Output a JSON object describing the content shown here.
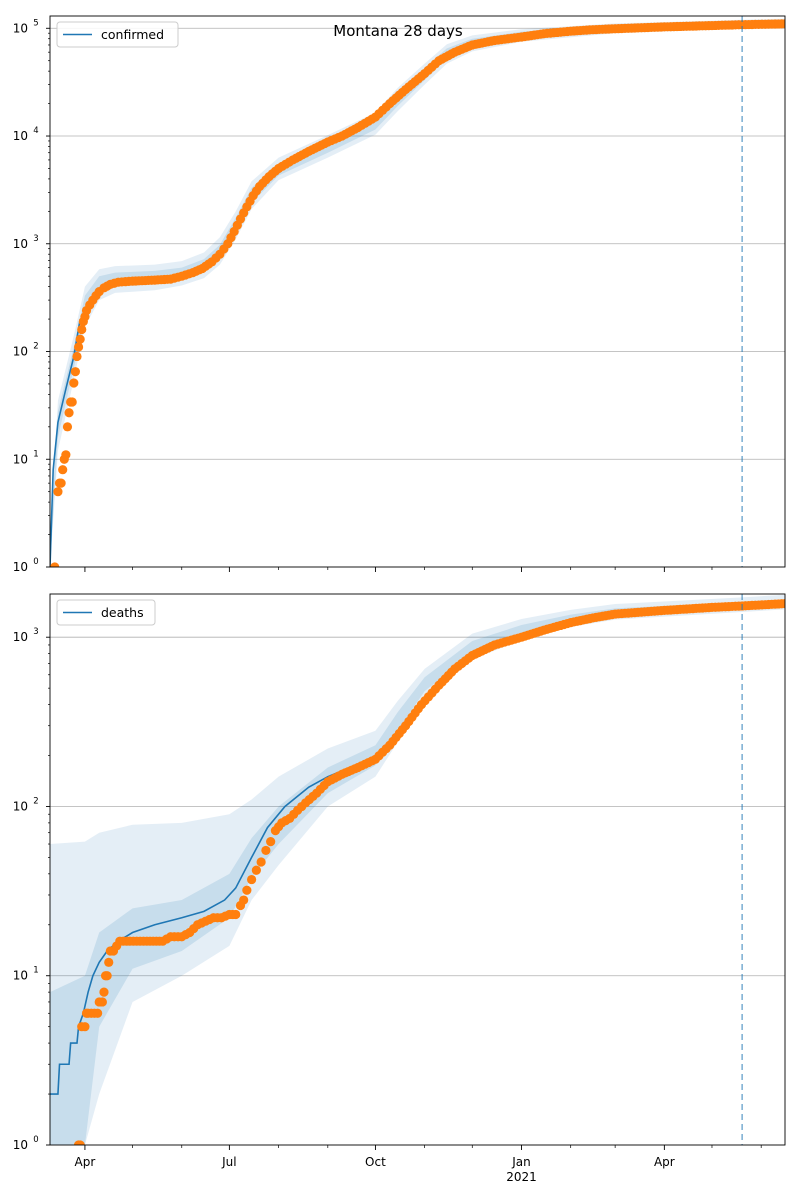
{
  "figure": {
    "title": "Montana 28 days"
  },
  "colors": {
    "model": "#1f77b4",
    "observed": "#ff7f0e",
    "band": "#1f77b4",
    "grid": "#b0b0b0"
  },
  "chart_data": [
    {
      "type": "line",
      "yscale": "log",
      "ylim": [
        1,
        130000
      ],
      "xlim": [
        "2020-03-10",
        "2021-06-16"
      ],
      "grid": "horizontal",
      "legend_placement": "upper-left",
      "series": [
        {
          "name": "confirmed",
          "kind": "model-line"
        }
      ],
      "yticks": [
        {
          "base": "10",
          "exp": "0",
          "value": 1
        },
        {
          "base": "10",
          "exp": "1",
          "value": 10
        },
        {
          "base": "10",
          "exp": "2",
          "value": 100
        },
        {
          "base": "10",
          "exp": "3",
          "value": 1000
        },
        {
          "base": "10",
          "exp": "4",
          "value": 10000
        },
        {
          "base": "10",
          "exp": "5",
          "value": 100000
        }
      ],
      "forecast_start": "2021-05-20",
      "model": [
        [
          "2020-03-10",
          1
        ],
        [
          "2020-03-12",
          8
        ],
        [
          "2020-03-15",
          22
        ],
        [
          "2020-03-20",
          45
        ],
        [
          "2020-03-25",
          90
        ],
        [
          "2020-03-29",
          200
        ]
      ],
      "band": [
        [
          "2020-03-10",
          1,
          1.5,
          1,
          2
        ],
        [
          "2020-03-15",
          16,
          28,
          12,
          35
        ],
        [
          "2020-03-25",
          70,
          110,
          55,
          140
        ],
        [
          "2020-04-01",
          210,
          330,
          170,
          400
        ],
        [
          "2020-04-10",
          350,
          500,
          300,
          580
        ],
        [
          "2020-04-20",
          400,
          540,
          350,
          620
        ],
        [
          "2020-05-15",
          420,
          560,
          370,
          640
        ],
        [
          "2020-06-01",
          460,
          600,
          410,
          690
        ],
        [
          "2020-06-15",
          540,
          720,
          480,
          830
        ],
        [
          "2020-06-25",
          720,
          980,
          640,
          1150
        ],
        [
          "2020-07-05",
          1250,
          1750,
          1100,
          2000
        ],
        [
          "2020-07-15",
          2400,
          3300,
          2100,
          3800
        ],
        [
          "2020-08-01",
          4300,
          5600,
          3900,
          6300
        ],
        [
          "2020-09-01",
          7000,
          9200,
          6300,
          10200
        ],
        [
          "2020-10-01",
          11500,
          15000,
          10300,
          16500
        ],
        [
          "2020-10-15",
          19000,
          25000,
          17000,
          28000
        ],
        [
          "2020-11-01",
          33000,
          43000,
          30000,
          47000
        ],
        [
          "2020-11-15",
          52000,
          65000,
          47000,
          71000
        ],
        [
          "2020-12-01",
          66000,
          80000,
          61000,
          86000
        ],
        [
          "2021-01-01",
          80000,
          93000,
          75000,
          98000
        ],
        [
          "2021-03-01",
          94000,
          106000,
          90000,
          111000
        ],
        [
          "2021-05-20",
          103000,
          115000,
          99000,
          120000
        ],
        [
          "2021-06-16",
          106000,
          118000,
          102000,
          123000
        ]
      ],
      "observed": [
        [
          "2020-03-13",
          1
        ],
        [
          "2020-03-15",
          5
        ],
        [
          "2020-03-16",
          6
        ],
        [
          "2020-03-17",
          6
        ],
        [
          "2020-03-18",
          8
        ],
        [
          "2020-03-19",
          10
        ],
        [
          "2020-03-20",
          11
        ],
        [
          "2020-03-21",
          20
        ],
        [
          "2020-03-22",
          27
        ],
        [
          "2020-03-23",
          34
        ],
        [
          "2020-03-24",
          34
        ],
        [
          "2020-03-25",
          51
        ],
        [
          "2020-03-26",
          65
        ],
        [
          "2020-03-27",
          90
        ],
        [
          "2020-03-28",
          110
        ],
        [
          "2020-03-29",
          130
        ],
        [
          "2020-03-30",
          160
        ],
        [
          "2020-03-31",
          190
        ],
        [
          "2020-04-01",
          210
        ],
        [
          "2020-04-02",
          240
        ],
        [
          "2020-04-04",
          270
        ],
        [
          "2020-04-06",
          300
        ],
        [
          "2020-04-08",
          330
        ],
        [
          "2020-04-10",
          360
        ],
        [
          "2020-04-13",
          390
        ],
        [
          "2020-04-17",
          420
        ],
        [
          "2020-04-22",
          440
        ],
        [
          "2020-05-01",
          450
        ],
        [
          "2020-05-15",
          460
        ],
        [
          "2020-05-25",
          470
        ],
        [
          "2020-06-01",
          500
        ],
        [
          "2020-06-08",
          540
        ],
        [
          "2020-06-14",
          590
        ],
        [
          "2020-06-20",
          680
        ],
        [
          "2020-06-25",
          800
        ],
        [
          "2020-06-30",
          1000
        ],
        [
          "2020-07-04",
          1300
        ],
        [
          "2020-07-08",
          1700
        ],
        [
          "2020-07-12",
          2200
        ],
        [
          "2020-07-16",
          2800
        ],
        [
          "2020-07-20",
          3400
        ],
        [
          "2020-07-26",
          4200
        ],
        [
          "2020-08-01",
          5000
        ],
        [
          "2020-08-10",
          6000
        ],
        [
          "2020-08-20",
          7200
        ],
        [
          "2020-09-01",
          8800
        ],
        [
          "2020-09-10",
          10000
        ],
        [
          "2020-09-20",
          12000
        ],
        [
          "2020-10-01",
          15000
        ],
        [
          "2020-10-10",
          20000
        ],
        [
          "2020-10-20",
          27000
        ],
        [
          "2020-11-01",
          38000
        ],
        [
          "2020-11-10",
          50000
        ],
        [
          "2020-11-20",
          60000
        ],
        [
          "2020-12-01",
          70000
        ],
        [
          "2020-12-15",
          77000
        ],
        [
          "2021-01-01",
          83000
        ],
        [
          "2021-01-15",
          89000
        ],
        [
          "2021-02-01",
          94000
        ],
        [
          "2021-02-15",
          97000
        ],
        [
          "2021-03-01",
          99000
        ],
        [
          "2021-04-01",
          103000
        ],
        [
          "2021-05-01",
          106000
        ],
        [
          "2021-05-20",
          108000
        ],
        [
          "2021-06-16",
          110000
        ]
      ]
    },
    {
      "type": "line",
      "yscale": "log",
      "ylim": [
        1,
        1800
      ],
      "xlim": [
        "2020-03-10",
        "2021-06-16"
      ],
      "grid": "horizontal",
      "legend_placement": "upper-left",
      "series": [
        {
          "name": "deaths",
          "kind": "model-line"
        }
      ],
      "yticks": [
        {
          "base": "10",
          "exp": "0",
          "value": 1
        },
        {
          "base": "10",
          "exp": "1",
          "value": 10
        },
        {
          "base": "10",
          "exp": "2",
          "value": 100
        },
        {
          "base": "10",
          "exp": "3",
          "value": 1000
        }
      ],
      "forecast_start": "2021-05-20",
      "model": [
        [
          "2020-03-10",
          2
        ],
        [
          "2020-03-15",
          2
        ],
        [
          "2020-03-16",
          3
        ],
        [
          "2020-03-22",
          3
        ],
        [
          "2020-03-23",
          4
        ],
        [
          "2020-03-27",
          4
        ],
        [
          "2020-03-28",
          5
        ],
        [
          "2020-03-31",
          6
        ],
        [
          "2020-04-03",
          8
        ],
        [
          "2020-04-06",
          10
        ],
        [
          "2020-04-10",
          12
        ],
        [
          "2020-04-15",
          14
        ],
        [
          "2020-04-22",
          16
        ],
        [
          "2020-05-01",
          18
        ],
        [
          "2020-05-15",
          20
        ],
        [
          "2020-06-01",
          22
        ],
        [
          "2020-06-15",
          24
        ],
        [
          "2020-06-28",
          28
        ],
        [
          "2020-07-05",
          33
        ],
        [
          "2020-07-15",
          50
        ],
        [
          "2020-07-25",
          75
        ],
        [
          "2020-08-05",
          100
        ],
        [
          "2020-08-20",
          130
        ],
        [
          "2020-09-01",
          150
        ],
        [
          "2020-09-15",
          170
        ]
      ],
      "band": [
        [
          "2020-03-10",
          1,
          8,
          1,
          60
        ],
        [
          "2020-04-01",
          1,
          10,
          1,
          62
        ],
        [
          "2020-04-10",
          5,
          18,
          2,
          70
        ],
        [
          "2020-05-01",
          11,
          25,
          7,
          78
        ],
        [
          "2020-06-01",
          14,
          28,
          10,
          80
        ],
        [
          "2020-07-01",
          22,
          40,
          15,
          90
        ],
        [
          "2020-07-15",
          38,
          65,
          28,
          110
        ],
        [
          "2020-08-01",
          60,
          100,
          45,
          150
        ],
        [
          "2020-09-01",
          120,
          170,
          100,
          220
        ],
        [
          "2020-10-01",
          175,
          230,
          150,
          280
        ],
        [
          "2020-10-15",
          280,
          360,
          240,
          420
        ],
        [
          "2020-11-01",
          480,
          580,
          420,
          650
        ],
        [
          "2020-12-01",
          800,
          950,
          740,
          1050
        ],
        [
          "2021-01-01",
          1020,
          1180,
          960,
          1280
        ],
        [
          "2021-02-01",
          1220,
          1360,
          1150,
          1450
        ],
        [
          "2021-03-01",
          1340,
          1480,
          1270,
          1570
        ],
        [
          "2021-05-20",
          1480,
          1620,
          1410,
          1720
        ],
        [
          "2021-06-16",
          1530,
          1670,
          1460,
          1780
        ]
      ],
      "observed": [
        [
          "2020-03-28",
          1
        ],
        [
          "2020-03-29",
          1
        ],
        [
          "2020-03-30",
          5
        ],
        [
          "2020-04-01",
          5
        ],
        [
          "2020-04-02",
          6
        ],
        [
          "2020-04-03",
          6
        ],
        [
          "2020-04-05",
          6
        ],
        [
          "2020-04-07",
          6
        ],
        [
          "2020-04-09",
          6
        ],
        [
          "2020-04-10",
          7
        ],
        [
          "2020-04-12",
          7
        ],
        [
          "2020-04-13",
          8
        ],
        [
          "2020-04-14",
          10
        ],
        [
          "2020-04-15",
          10
        ],
        [
          "2020-04-16",
          12
        ],
        [
          "2020-04-17",
          14
        ],
        [
          "2020-04-19",
          14
        ],
        [
          "2020-04-21",
          15
        ],
        [
          "2020-04-23",
          16
        ],
        [
          "2020-05-10",
          16
        ],
        [
          "2020-05-20",
          16
        ],
        [
          "2020-05-25",
          17
        ],
        [
          "2020-06-01",
          17
        ],
        [
          "2020-06-06",
          18
        ],
        [
          "2020-06-11",
          20
        ],
        [
          "2020-06-16",
          21
        ],
        [
          "2020-06-21",
          22
        ],
        [
          "2020-06-26",
          22
        ],
        [
          "2020-07-01",
          23
        ],
        [
          "2020-07-05",
          23
        ],
        [
          "2020-07-08",
          26
        ],
        [
          "2020-07-10",
          28
        ],
        [
          "2020-07-12",
          32
        ],
        [
          "2020-07-15",
          37
        ],
        [
          "2020-07-18",
          42
        ],
        [
          "2020-07-21",
          47
        ],
        [
          "2020-07-24",
          55
        ],
        [
          "2020-07-27",
          62
        ],
        [
          "2020-07-30",
          72
        ],
        [
          "2020-08-03",
          80
        ],
        [
          "2020-08-08",
          85
        ],
        [
          "2020-08-13",
          95
        ],
        [
          "2020-08-18",
          105
        ],
        [
          "2020-08-25",
          120
        ],
        [
          "2020-09-01",
          140
        ],
        [
          "2020-09-10",
          155
        ],
        [
          "2020-09-20",
          170
        ],
        [
          "2020-10-01",
          190
        ],
        [
          "2020-10-10",
          230
        ],
        [
          "2020-10-20",
          300
        ],
        [
          "2020-10-30",
          400
        ],
        [
          "2020-11-10",
          520
        ],
        [
          "2020-11-20",
          650
        ],
        [
          "2020-12-01",
          780
        ],
        [
          "2020-12-15",
          900
        ],
        [
          "2021-01-01",
          1000
        ],
        [
          "2021-01-15",
          1100
        ],
        [
          "2021-02-01",
          1220
        ],
        [
          "2021-02-15",
          1300
        ],
        [
          "2021-03-01",
          1370
        ],
        [
          "2021-04-01",
          1440
        ],
        [
          "2021-05-01",
          1500
        ],
        [
          "2021-05-20",
          1530
        ],
        [
          "2021-06-16",
          1580
        ]
      ]
    }
  ],
  "xaxis": {
    "major_ticks": [
      {
        "date": "2020-04-01",
        "label": "Apr",
        "sub": ""
      },
      {
        "date": "2020-07-01",
        "label": "Jul",
        "sub": ""
      },
      {
        "date": "2020-10-01",
        "label": "Oct",
        "sub": ""
      },
      {
        "date": "2021-01-01",
        "label": "Jan",
        "sub": "2021"
      },
      {
        "date": "2021-04-01",
        "label": "Apr",
        "sub": ""
      }
    ],
    "minor_ticks": [
      "2020-05-01",
      "2020-06-01",
      "2020-08-01",
      "2020-09-01",
      "2020-11-01",
      "2020-12-01",
      "2021-02-01",
      "2021-03-01",
      "2021-05-01",
      "2021-06-01"
    ]
  }
}
